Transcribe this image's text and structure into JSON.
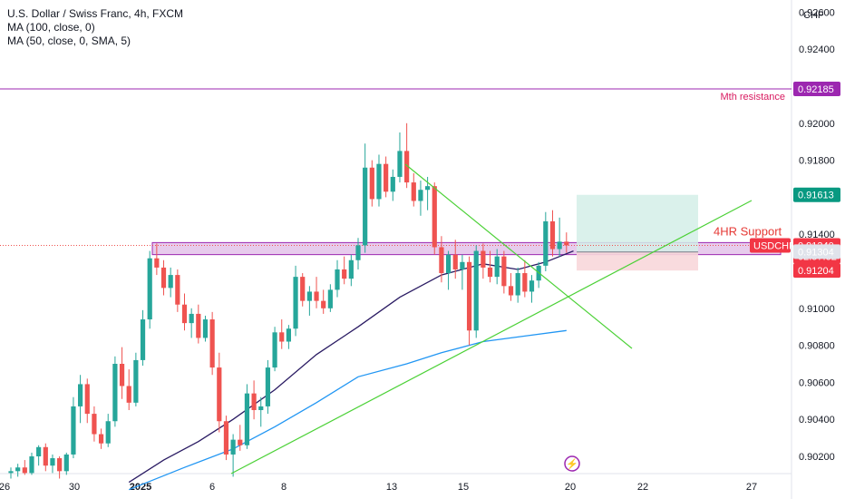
{
  "header": {
    "title": "U.S. Dollar / Swiss Franc, 4h, FXCM",
    "indicator_1": "MA (100, close, 0)",
    "indicator_2": "MA (50, close, 0, SMA, 5)"
  },
  "price_scale": {
    "currency": "CHF"
  },
  "annotations": {
    "monthly_resistance": "Mth resistance",
    "support_zone": "4HR Support"
  },
  "badges": {
    "resistance_level": "0.92185",
    "target": "0.91613",
    "symbol": "USDCHF",
    "last_price": "0.91340",
    "countdown": "02:57:32",
    "entry": "0.91304",
    "stop": "0.91204"
  },
  "colors": {
    "up": "#26a69a",
    "down": "#ef5350",
    "ma100": "#2196f3",
    "ma50": "#2a1b63",
    "trendline": "#4cd137",
    "resistance_line": "#9c27b0",
    "support_zone_fill": "#e1bee7",
    "profit_zone": "#d4efe8",
    "loss_zone": "#f8d7da",
    "axis_badge_red": "#f23645",
    "axis_badge_green": "#089981",
    "axis_badge_purple": "#9c27b0"
  },
  "chart_data": {
    "type": "candlestick",
    "symbol": "USDCHF",
    "timeframe": "4h",
    "y_ticks": [
      "0.92600",
      "0.92400",
      "0.92200",
      "0.92000",
      "0.91800",
      "0.91600",
      "0.91400",
      "0.91200",
      "0.91000",
      "0.90800",
      "0.90600",
      "0.90400",
      "0.90200"
    ],
    "ylim": [
      0.9011,
      0.928
    ],
    "x_ticks": [
      "26",
      "30",
      "2025",
      "6",
      "8",
      "13",
      "15",
      "20",
      "22",
      "27"
    ],
    "candles": [
      [
        0.9011,
        0.9014,
        0.9008,
        0.9012
      ],
      [
        0.9012,
        0.9016,
        0.9009,
        0.9014
      ],
      [
        0.9014,
        0.9018,
        0.901,
        0.9011
      ],
      [
        0.9011,
        0.9022,
        0.901,
        0.902
      ],
      [
        0.902,
        0.9026,
        0.9015,
        0.9025
      ],
      [
        0.9025,
        0.9027,
        0.9012,
        0.9015
      ],
      [
        0.9015,
        0.9021,
        0.9011,
        0.9019
      ],
      [
        0.9019,
        0.902,
        0.9008,
        0.9012
      ],
      [
        0.9012,
        0.9022,
        0.901,
        0.9021
      ],
      [
        0.9021,
        0.9052,
        0.9019,
        0.9047
      ],
      [
        0.9047,
        0.9064,
        0.9038,
        0.9059
      ],
      [
        0.9059,
        0.9062,
        0.9038,
        0.9043
      ],
      [
        0.9043,
        0.9047,
        0.9028,
        0.9032
      ],
      [
        0.9032,
        0.9035,
        0.9024,
        0.9027
      ],
      [
        0.9027,
        0.9043,
        0.9025,
        0.9039
      ],
      [
        0.9039,
        0.9074,
        0.9036,
        0.907
      ],
      [
        0.907,
        0.9079,
        0.9051,
        0.9058
      ],
      [
        0.9058,
        0.9067,
        0.9045,
        0.9049
      ],
      [
        0.9049,
        0.9076,
        0.9047,
        0.9072
      ],
      [
        0.9072,
        0.9099,
        0.9069,
        0.9094
      ],
      [
        0.9094,
        0.9131,
        0.9089,
        0.9127
      ],
      [
        0.9127,
        0.9135,
        0.9118,
        0.9122
      ],
      [
        0.9122,
        0.9126,
        0.9107,
        0.9111
      ],
      [
        0.9111,
        0.9122,
        0.9106,
        0.9118
      ],
      [
        0.9118,
        0.9121,
        0.9098,
        0.9102
      ],
      [
        0.9102,
        0.9108,
        0.9088,
        0.9092
      ],
      [
        0.9092,
        0.91,
        0.9084,
        0.9097
      ],
      [
        0.9097,
        0.9102,
        0.9081,
        0.9084
      ],
      [
        0.9084,
        0.9096,
        0.9082,
        0.9094
      ],
      [
        0.9094,
        0.9098,
        0.9064,
        0.9068
      ],
      [
        0.9068,
        0.9076,
        0.9033,
        0.9039
      ],
      [
        0.9039,
        0.9042,
        0.9018,
        0.9021
      ],
      [
        0.9021,
        0.9032,
        0.9009,
        0.9029
      ],
      [
        0.9029,
        0.9037,
        0.9023,
        0.9026
      ],
      [
        0.9026,
        0.9059,
        0.9024,
        0.9054
      ],
      [
        0.9054,
        0.9061,
        0.904,
        0.9045
      ],
      [
        0.9045,
        0.9052,
        0.9036,
        0.9047
      ],
      [
        0.9047,
        0.9072,
        0.9043,
        0.9068
      ],
      [
        0.9068,
        0.909,
        0.9066,
        0.9087
      ],
      [
        0.9087,
        0.9094,
        0.9078,
        0.9082
      ],
      [
        0.9082,
        0.9091,
        0.9078,
        0.9089
      ],
      [
        0.9089,
        0.9123,
        0.9085,
        0.9117
      ],
      [
        0.9117,
        0.9119,
        0.9101,
        0.9104
      ],
      [
        0.9104,
        0.9112,
        0.9096,
        0.9109
      ],
      [
        0.9109,
        0.9117,
        0.91,
        0.9104
      ],
      [
        0.9104,
        0.911,
        0.9097,
        0.91
      ],
      [
        0.91,
        0.9113,
        0.9098,
        0.911
      ],
      [
        0.911,
        0.9126,
        0.9106,
        0.9121
      ],
      [
        0.9121,
        0.9128,
        0.9113,
        0.9116
      ],
      [
        0.9116,
        0.9129,
        0.9112,
        0.9126
      ],
      [
        0.9126,
        0.9138,
        0.9121,
        0.9134
      ],
      [
        0.9134,
        0.9189,
        0.913,
        0.9176
      ],
      [
        0.9176,
        0.918,
        0.9155,
        0.9159
      ],
      [
        0.9159,
        0.9183,
        0.9155,
        0.9178
      ],
      [
        0.9178,
        0.9182,
        0.916,
        0.9163
      ],
      [
        0.9163,
        0.9175,
        0.9158,
        0.9171
      ],
      [
        0.9171,
        0.9195,
        0.9168,
        0.9185
      ],
      [
        0.9185,
        0.92,
        0.9165,
        0.9168
      ],
      [
        0.9168,
        0.9173,
        0.9155,
        0.9158
      ],
      [
        0.9158,
        0.9169,
        0.915,
        0.9164
      ],
      [
        0.9164,
        0.9171,
        0.9153,
        0.9166
      ],
      [
        0.9166,
        0.9168,
        0.9129,
        0.9133
      ],
      [
        0.9133,
        0.9139,
        0.9114,
        0.9119
      ],
      [
        0.9119,
        0.9131,
        0.911,
        0.9129
      ],
      [
        0.9129,
        0.9137,
        0.9116,
        0.9121
      ],
      [
        0.9121,
        0.9129,
        0.911,
        0.9125
      ],
      [
        0.9125,
        0.9128,
        0.908,
        0.9088
      ],
      [
        0.9088,
        0.9134,
        0.9084,
        0.9131
      ],
      [
        0.9131,
        0.9135,
        0.9116,
        0.9122
      ],
      [
        0.9122,
        0.9131,
        0.9114,
        0.9117
      ],
      [
        0.9117,
        0.9132,
        0.9113,
        0.9128
      ],
      [
        0.9128,
        0.9131,
        0.9108,
        0.9112
      ],
      [
        0.9112,
        0.9119,
        0.9104,
        0.9107
      ],
      [
        0.9107,
        0.9122,
        0.9103,
        0.9119
      ],
      [
        0.9119,
        0.9126,
        0.9106,
        0.9109
      ],
      [
        0.9109,
        0.9118,
        0.9103,
        0.9115
      ],
      [
        0.9115,
        0.9125,
        0.9111,
        0.9123
      ],
      [
        0.9123,
        0.9152,
        0.912,
        0.9147
      ],
      [
        0.9147,
        0.9153,
        0.9128,
        0.9132
      ],
      [
        0.9132,
        0.9149,
        0.9128,
        0.9136
      ],
      [
        0.9136,
        0.9141,
        0.913,
        0.9134
      ]
    ],
    "ma100": [
      [
        17,
        0.9002
      ],
      [
        25,
        0.9014
      ],
      [
        32,
        0.9024
      ],
      [
        38,
        0.9036
      ],
      [
        44,
        0.9049
      ],
      [
        50,
        0.9063
      ],
      [
        57,
        0.907
      ],
      [
        62,
        0.9076
      ],
      [
        68,
        0.9082
      ],
      [
        74,
        0.9085
      ],
      [
        80,
        0.9088
      ]
    ],
    "ma50": [
      [
        17,
        0.9006
      ],
      [
        22,
        0.9018
      ],
      [
        27,
        0.9028
      ],
      [
        32,
        0.904
      ],
      [
        38,
        0.9056
      ],
      [
        44,
        0.9075
      ],
      [
        50,
        0.909
      ],
      [
        56,
        0.9106
      ],
      [
        62,
        0.9118
      ],
      [
        68,
        0.9124
      ],
      [
        73,
        0.9121
      ],
      [
        77,
        0.9125
      ],
      [
        81,
        0.9131
      ]
    ],
    "resistance_level": 0.92185,
    "support_zone": [
      0.9129,
      0.91355
    ],
    "position": {
      "target": 0.91613,
      "entry": 0.91304,
      "stop": 0.91204
    },
    "last_price": 0.9134
  }
}
